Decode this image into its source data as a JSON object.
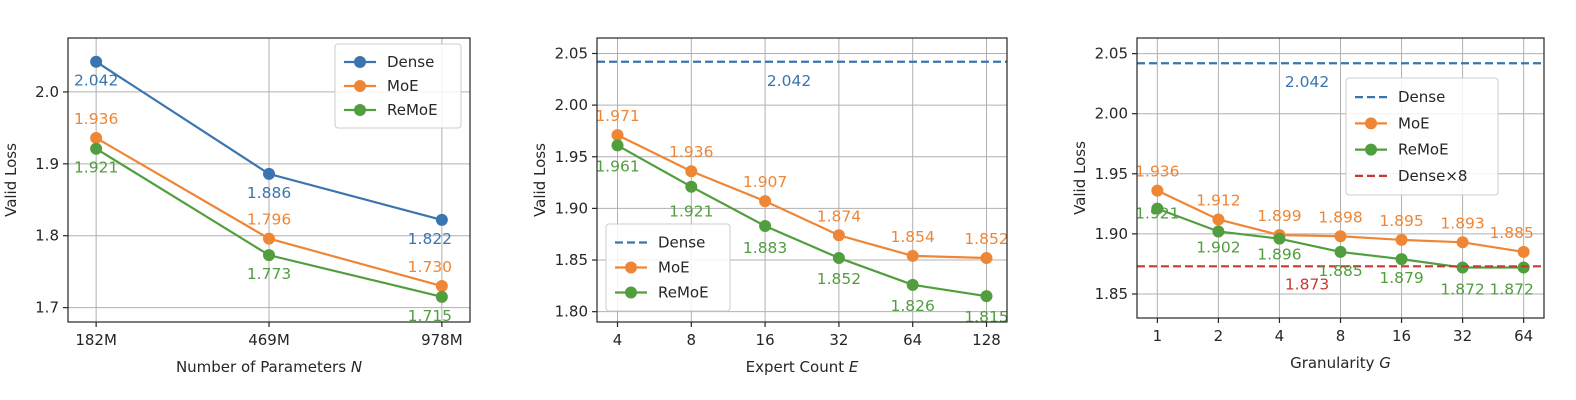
{
  "colors": {
    "Dense": "#3a75af",
    "MoE": "#ef8636",
    "ReMoE": "#519e3e",
    "Dense×8": "#c53a32"
  },
  "chart_data": [
    {
      "type": "line",
      "xlabel_prefix": "Number of Parameters ",
      "xlabel_var": "N",
      "ylabel": "Valid Loss",
      "categories": [
        "182M",
        "469M",
        "978M"
      ],
      "y_ticks": [
        "1.7",
        "1.8",
        "1.9",
        "2.0"
      ],
      "ylim": [
        1.68,
        2.075
      ],
      "grid": true,
      "legend_position": "top-right",
      "series": [
        {
          "name": "Dense",
          "values": [
            2.042,
            1.886,
            1.822
          ],
          "labels": [
            "2.042",
            "1.886",
            "1.822"
          ]
        },
        {
          "name": "MoE",
          "values": [
            1.936,
            1.796,
            1.73
          ],
          "labels": [
            "1.936",
            "1.796",
            "1.730"
          ]
        },
        {
          "name": "ReMoE",
          "values": [
            1.921,
            1.773,
            1.715
          ],
          "labels": [
            "1.921",
            "1.773",
            "1.715"
          ]
        }
      ]
    },
    {
      "type": "line",
      "xlabel_prefix": "Expert Count ",
      "xlabel_var": "E",
      "ylabel": "Valid Loss",
      "categories": [
        "4",
        "8",
        "16",
        "32",
        "64",
        "128"
      ],
      "y_ticks": [
        "1.80",
        "1.85",
        "1.90",
        "1.95",
        "2.00",
        "2.05"
      ],
      "ylim": [
        1.79,
        2.065
      ],
      "grid": true,
      "legend_position": "bottom-left",
      "series": [
        {
          "name": "Dense",
          "style": "dashed",
          "values": [
            2.042,
            2.042,
            2.042,
            2.042,
            2.042,
            2.042
          ],
          "labels": [
            "2.042"
          ]
        },
        {
          "name": "MoE",
          "values": [
            1.971,
            1.936,
            1.907,
            1.874,
            1.854,
            1.852
          ],
          "labels": [
            "1.971",
            "1.936",
            "1.907",
            "1.874",
            "1.854",
            "1.852"
          ]
        },
        {
          "name": "ReMoE",
          "values": [
            1.961,
            1.921,
            1.883,
            1.852,
            1.826,
            1.815
          ],
          "labels": [
            "1.961",
            "1.921",
            "1.883",
            "1.852",
            "1.826",
            "1.815"
          ]
        }
      ]
    },
    {
      "type": "line",
      "xlabel_prefix": "Granularity ",
      "xlabel_var": "G",
      "ylabel": "Valid Loss",
      "categories": [
        "1",
        "2",
        "4",
        "8",
        "16",
        "32",
        "64"
      ],
      "y_ticks": [
        "1.85",
        "1.90",
        "1.95",
        "2.00",
        "2.05"
      ],
      "ylim": [
        1.83,
        2.063
      ],
      "grid": true,
      "legend_position": "right",
      "series": [
        {
          "name": "Dense",
          "style": "dashed",
          "values": [
            2.042,
            2.042,
            2.042,
            2.042,
            2.042,
            2.042,
            2.042
          ],
          "labels": [
            "2.042"
          ]
        },
        {
          "name": "MoE",
          "values": [
            1.936,
            1.912,
            1.899,
            1.898,
            1.895,
            1.893,
            1.885
          ],
          "labels": [
            "1.936",
            "1.912",
            "1.899",
            "1.898",
            "1.895",
            "1.893",
            "1.885"
          ]
        },
        {
          "name": "ReMoE",
          "values": [
            1.921,
            1.902,
            1.896,
            1.885,
            1.879,
            1.872,
            1.872
          ],
          "labels": [
            "1.921",
            "1.902",
            "1.896",
            "1.885",
            "1.879",
            "1.872",
            "1.872"
          ]
        },
        {
          "name": "Dense×8",
          "style": "dashed",
          "values": [
            1.873,
            1.873,
            1.873,
            1.873,
            1.873,
            1.873,
            1.873
          ],
          "labels": [
            "1.873"
          ]
        }
      ]
    }
  ]
}
